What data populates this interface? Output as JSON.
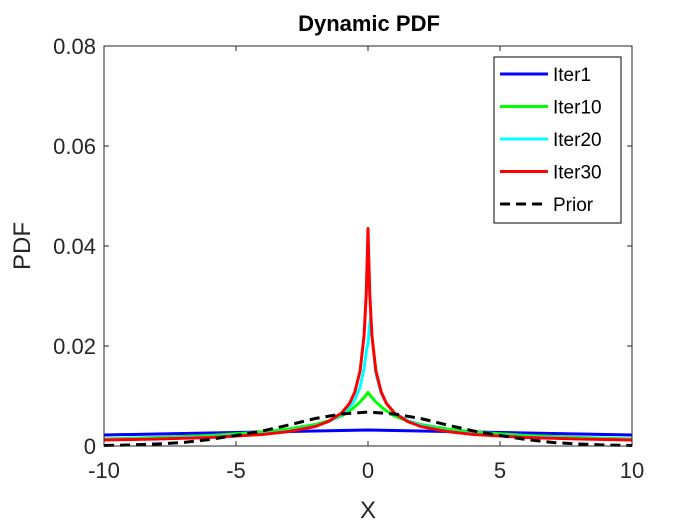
{
  "chart_data": {
    "type": "line",
    "title": "Dynamic PDF",
    "xlabel": "X",
    "ylabel": "PDF",
    "xlim": [
      -10,
      10
    ],
    "ylim": [
      0,
      0.08
    ],
    "xticks": [
      -10,
      -5,
      0,
      5,
      10
    ],
    "xtick_labels": [
      "-10",
      "-5",
      "0",
      "5",
      "10"
    ],
    "yticks": [
      0,
      0.02,
      0.04,
      0.06,
      0.08
    ],
    "ytick_labels": [
      "0",
      "0.02",
      "0.04",
      "0.06",
      "0.08"
    ],
    "grid": false,
    "legend_position": "top-right",
    "series": [
      {
        "name": "Iter1",
        "color": "#0000ff",
        "dash": "solid",
        "points": [
          [
            -10,
            0.0022
          ],
          [
            -8,
            0.0024
          ],
          [
            -6,
            0.0026
          ],
          [
            -4,
            0.0028
          ],
          [
            -2,
            0.003
          ],
          [
            -1,
            0.0031
          ],
          [
            0,
            0.0032
          ],
          [
            1,
            0.0031
          ],
          [
            2,
            0.003
          ],
          [
            4,
            0.0028
          ],
          [
            6,
            0.0026
          ],
          [
            8,
            0.0024
          ],
          [
            10,
            0.0022
          ]
        ]
      },
      {
        "name": "Iter10",
        "color": "#00ff00",
        "dash": "solid",
        "points": [
          [
            -10,
            0.0014
          ],
          [
            -8,
            0.0017
          ],
          [
            -6,
            0.0021
          ],
          [
            -4,
            0.0028
          ],
          [
            -3,
            0.0034
          ],
          [
            -2,
            0.0043
          ],
          [
            -1.5,
            0.005
          ],
          [
            -1,
            0.006
          ],
          [
            -0.6,
            0.0074
          ],
          [
            -0.3,
            0.0088
          ],
          [
            -0.1,
            0.01
          ],
          [
            0,
            0.0107
          ],
          [
            0.1,
            0.01
          ],
          [
            0.3,
            0.0088
          ],
          [
            0.6,
            0.0074
          ],
          [
            1,
            0.006
          ],
          [
            1.5,
            0.005
          ],
          [
            2,
            0.0043
          ],
          [
            3,
            0.0034
          ],
          [
            4,
            0.0028
          ],
          [
            6,
            0.0021
          ],
          [
            8,
            0.0017
          ],
          [
            10,
            0.0014
          ]
        ]
      },
      {
        "name": "Iter20",
        "color": "#00ffff",
        "dash": "solid",
        "points": [
          [
            -10,
            0.0013
          ],
          [
            -8,
            0.0015
          ],
          [
            -6,
            0.0018
          ],
          [
            -4,
            0.0024
          ],
          [
            -3,
            0.003
          ],
          [
            -2,
            0.004
          ],
          [
            -1.5,
            0.0049
          ],
          [
            -1,
            0.0063
          ],
          [
            -0.7,
            0.0077
          ],
          [
            -0.5,
            0.0092
          ],
          [
            -0.3,
            0.0118
          ],
          [
            -0.15,
            0.0155
          ],
          [
            -0.05,
            0.0195
          ],
          [
            0,
            0.0205
          ],
          [
            0.05,
            0.0235
          ],
          [
            0.1,
            0.026
          ],
          [
            0.15,
            0.022
          ],
          [
            0.3,
            0.0145
          ],
          [
            0.5,
            0.0105
          ],
          [
            0.7,
            0.0085
          ],
          [
            1,
            0.0066
          ],
          [
            1.5,
            0.0051
          ],
          [
            2,
            0.0041
          ],
          [
            3,
            0.003
          ],
          [
            4,
            0.0024
          ],
          [
            6,
            0.0018
          ],
          [
            8,
            0.0015
          ],
          [
            10,
            0.0013
          ]
        ]
      },
      {
        "name": "Iter30",
        "color": "#ff0000",
        "dash": "solid",
        "points": [
          [
            -10,
            0.0012
          ],
          [
            -8,
            0.0014
          ],
          [
            -6,
            0.0017
          ],
          [
            -4,
            0.0023
          ],
          [
            -3,
            0.0029
          ],
          [
            -2,
            0.0039
          ],
          [
            -1.5,
            0.0049
          ],
          [
            -1,
            0.0066
          ],
          [
            -0.7,
            0.0085
          ],
          [
            -0.5,
            0.0108
          ],
          [
            -0.3,
            0.015
          ],
          [
            -0.15,
            0.022
          ],
          [
            -0.07,
            0.03
          ],
          [
            -0.02,
            0.039
          ],
          [
            0,
            0.0435
          ],
          [
            0.02,
            0.039
          ],
          [
            0.07,
            0.03
          ],
          [
            0.15,
            0.022
          ],
          [
            0.3,
            0.015
          ],
          [
            0.5,
            0.0108
          ],
          [
            0.7,
            0.0085
          ],
          [
            1,
            0.0066
          ],
          [
            1.5,
            0.0049
          ],
          [
            2,
            0.0039
          ],
          [
            3,
            0.0029
          ],
          [
            4,
            0.0023
          ],
          [
            6,
            0.0017
          ],
          [
            8,
            0.0014
          ],
          [
            10,
            0.0012
          ]
        ]
      },
      {
        "name": "Prior",
        "color": "#000000",
        "dash": "dashed",
        "points": [
          [
            -10,
            0.0001
          ],
          [
            -9,
            0.0002
          ],
          [
            -8,
            0.0004
          ],
          [
            -7,
            0.0007
          ],
          [
            -6,
            0.0013
          ],
          [
            -5,
            0.0021
          ],
          [
            -4,
            0.003
          ],
          [
            -3,
            0.0042
          ],
          [
            -2,
            0.0055
          ],
          [
            -1,
            0.0064
          ],
          [
            0,
            0.0068
          ],
          [
            1,
            0.0064
          ],
          [
            2,
            0.0055
          ],
          [
            3,
            0.0042
          ],
          [
            4,
            0.003
          ],
          [
            5,
            0.0021
          ],
          [
            6,
            0.0013
          ],
          [
            7,
            0.0007
          ],
          [
            8,
            0.0004
          ],
          [
            9,
            0.0002
          ],
          [
            10,
            0.0001
          ]
        ]
      }
    ]
  }
}
